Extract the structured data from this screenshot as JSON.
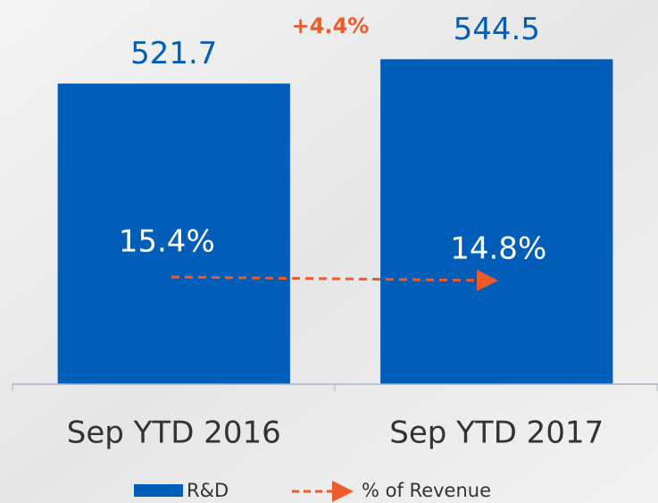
{
  "chart_data": {
    "type": "bar",
    "categories": [
      "Sep YTD 2016",
      "Sep YTD 2017"
    ],
    "series": [
      {
        "name": "R&D",
        "color": "#005eb8",
        "values": [
          521.7,
          544.5
        ]
      },
      {
        "name": "% of Revenue",
        "color": "#f05a28",
        "values": [
          15.4,
          14.8
        ],
        "value_labels": [
          "15.4%",
          "14.8%"
        ]
      }
    ],
    "annotation": "+4.4%",
    "ylim": [
      240,
      600
    ]
  }
}
